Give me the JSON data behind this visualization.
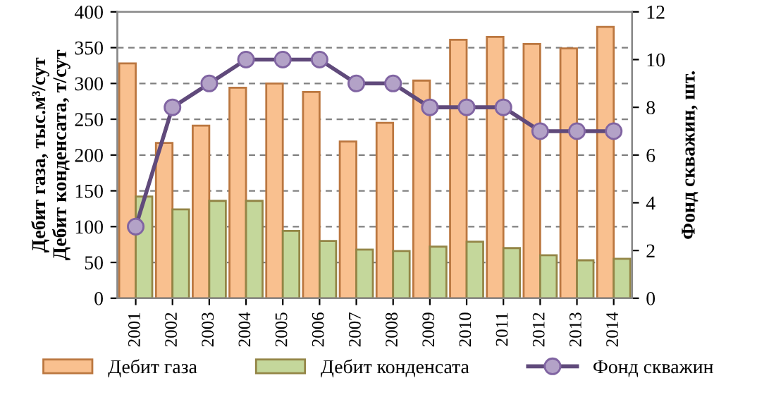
{
  "chart_data": {
    "type": "bar",
    "categories": [
      "2001",
      "2002",
      "2003",
      "2004",
      "2005",
      "2006",
      "2007",
      "2008",
      "2009",
      "2010",
      "2011",
      "2012",
      "2013",
      "2014"
    ],
    "series": [
      {
        "name": "Дебит газа",
        "color": "#f9c08f",
        "values": [
          328,
          217,
          241,
          294,
          300,
          288,
          219,
          245,
          304,
          361,
          365,
          355,
          349,
          379
        ]
      },
      {
        "name": "Дебит конденсата",
        "color": "#c4d79b",
        "values": [
          142,
          124,
          136,
          136,
          94,
          80,
          68,
          66,
          72,
          79,
          70,
          60,
          53,
          55
        ]
      },
      {
        "name": "Фонд скважин",
        "type": "line",
        "axis": "y2",
        "color": "#604a7b",
        "marker": "circle",
        "values": [
          3,
          8,
          9,
          10,
          10,
          10,
          9,
          9,
          8,
          8,
          8,
          7,
          7,
          7
        ]
      }
    ],
    "ylabel": "Дебит газа, тыс.м³/сут\nДебит конденсата, т/сут",
    "y2label": "Фонд скважин, шт.",
    "ylim": [
      0,
      400
    ],
    "yticks": [
      0,
      50,
      100,
      150,
      200,
      250,
      300,
      350,
      400
    ],
    "y2lim": [
      0,
      12
    ],
    "y2ticks": [
      0,
      2,
      4,
      6,
      8,
      10,
      12
    ],
    "grid": "y",
    "legend": "bottom"
  }
}
